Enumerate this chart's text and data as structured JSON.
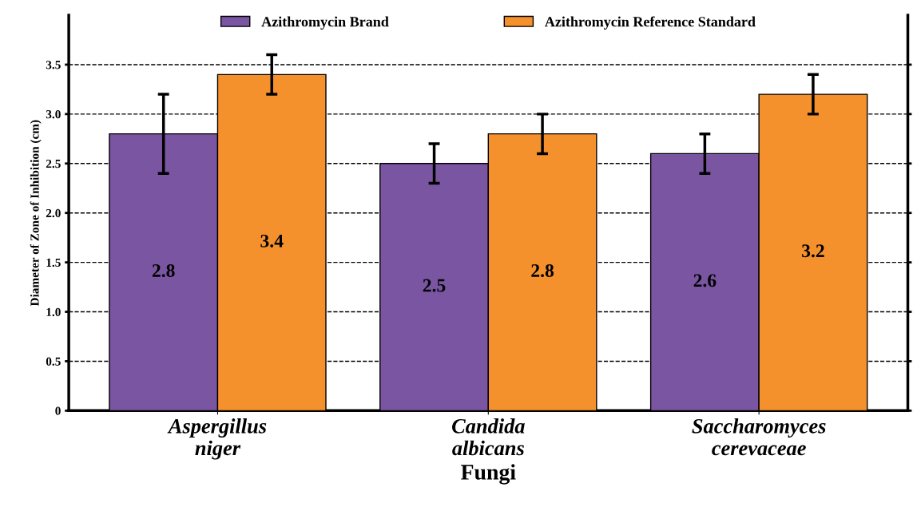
{
  "chart_data": {
    "type": "bar",
    "xlabel": "Fungi",
    "ylabel": "Diameter of Zone of Inhibition (cm)",
    "categories": [
      "Aspergillus\nniger",
      "Candida\nalbicans",
      "Saccharomyces\ncerevaceae"
    ],
    "series": [
      {
        "name": "Azithromycin Brand",
        "color": "#7a55a2",
        "values": [
          2.8,
          2.5,
          2.6
        ],
        "errors": [
          0.4,
          0.2,
          0.2
        ]
      },
      {
        "name": "Azithromycin Reference Standard",
        "color": "#f5912c",
        "values": [
          3.4,
          2.8,
          3.2
        ],
        "errors": [
          0.2,
          0.2,
          0.2
        ]
      }
    ],
    "data_labels": true,
    "ylim": [
      0,
      4
    ],
    "yticks": [
      0,
      0.5,
      {
        "value": 1,
        "label": "1.0"
      },
      1.5,
      {
        "value": 2,
        "label": "2.0"
      },
      2.5,
      {
        "value": 3,
        "label": "3.0"
      },
      3.5
    ],
    "grid": "y",
    "legend": "top"
  }
}
